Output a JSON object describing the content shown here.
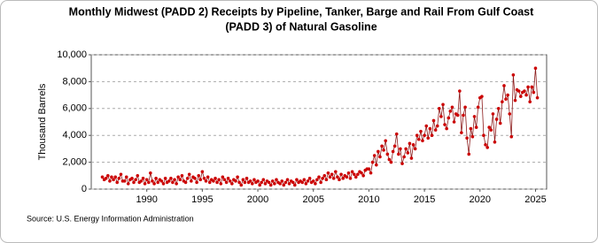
{
  "chart_data": {
    "type": "line",
    "title": [
      "Monthly Midwest (PADD 2)  Receipts by Pipeline, Tanker, Barge and Rail From Gulf Coast",
      "(PADD 3) of Natural Gasoline"
    ],
    "y_label": "Thousand Barrels",
    "source": "Source: U.S. Energy Information Administration",
    "color": "#8b1a1a",
    "marker_color": "#cc0000",
    "xlim": [
      1985,
      2026
    ],
    "xticks": [
      1990,
      1995,
      2000,
      2005,
      2010,
      2015,
      2020,
      2025
    ],
    "ylim": [
      0,
      10000
    ],
    "yticks": [
      0,
      {
        "value": 2000,
        "label": "2,000"
      },
      {
        "value": 4000,
        "label": "4,000"
      },
      {
        "value": 6000,
        "label": "6,000"
      },
      {
        "value": 8000,
        "label": "8,000"
      },
      {
        "value": 10000,
        "label": "10,000"
      }
    ],
    "grid": true,
    "x": [
      1986.0,
      1986.17,
      1986.33,
      1986.5,
      1986.67,
      1986.83,
      1987.0,
      1987.17,
      1987.33,
      1987.5,
      1987.67,
      1987.83,
      1988.0,
      1988.17,
      1988.33,
      1988.5,
      1988.67,
      1988.83,
      1989.0,
      1989.17,
      1989.33,
      1989.5,
      1989.67,
      1989.83,
      1990.0,
      1990.17,
      1990.33,
      1990.5,
      1990.67,
      1990.83,
      1991.0,
      1991.17,
      1991.33,
      1991.5,
      1991.67,
      1991.83,
      1992.0,
      1992.17,
      1992.33,
      1992.5,
      1992.67,
      1992.83,
      1993.0,
      1993.17,
      1993.33,
      1993.5,
      1993.67,
      1993.83,
      1994.0,
      1994.17,
      1994.33,
      1994.5,
      1994.67,
      1994.83,
      1995.0,
      1995.17,
      1995.33,
      1995.5,
      1995.67,
      1995.83,
      1996.0,
      1996.17,
      1996.33,
      1996.5,
      1996.67,
      1996.83,
      1997.0,
      1997.17,
      1997.33,
      1997.5,
      1997.67,
      1997.83,
      1998.0,
      1998.17,
      1998.33,
      1998.5,
      1998.67,
      1998.83,
      1999.0,
      1999.17,
      1999.33,
      1999.5,
      1999.67,
      1999.83,
      2000.0,
      2000.17,
      2000.33,
      2000.5,
      2000.67,
      2000.83,
      2001.0,
      2001.17,
      2001.33,
      2001.5,
      2001.67,
      2001.83,
      2002.0,
      2002.17,
      2002.33,
      2002.5,
      2002.67,
      2002.83,
      2003.0,
      2003.17,
      2003.33,
      2003.5,
      2003.67,
      2003.83,
      2004.0,
      2004.17,
      2004.33,
      2004.5,
      2004.67,
      2004.83,
      2005.0,
      2005.17,
      2005.33,
      2005.5,
      2005.67,
      2005.83,
      2006.0,
      2006.17,
      2006.33,
      2006.5,
      2006.67,
      2006.83,
      2007.0,
      2007.17,
      2007.33,
      2007.5,
      2007.67,
      2007.83,
      2008.0,
      2008.17,
      2008.33,
      2008.5,
      2008.67,
      2008.83,
      2009.0,
      2009.17,
      2009.33,
      2009.5,
      2009.67,
      2009.83,
      2010.0,
      2010.17,
      2010.33,
      2010.5,
      2010.67,
      2010.83,
      2011.0,
      2011.17,
      2011.33,
      2011.5,
      2011.67,
      2011.83,
      2012.0,
      2012.17,
      2012.33,
      2012.5,
      2012.67,
      2012.83,
      2013.0,
      2013.17,
      2013.33,
      2013.5,
      2013.67,
      2013.83,
      2014.0,
      2014.17,
      2014.33,
      2014.5,
      2014.67,
      2014.83,
      2015.0,
      2015.17,
      2015.33,
      2015.5,
      2015.67,
      2015.83,
      2016.0,
      2016.17,
      2016.33,
      2016.5,
      2016.67,
      2016.83,
      2017.0,
      2017.17,
      2017.33,
      2017.5,
      2017.67,
      2017.83,
      2018.0,
      2018.17,
      2018.33,
      2018.5,
      2018.67,
      2018.83,
      2019.0,
      2019.17,
      2019.33,
      2019.5,
      2019.67,
      2019.83,
      2020.0,
      2020.17,
      2020.33,
      2020.5,
      2020.67,
      2020.83,
      2021.0,
      2021.17,
      2021.33,
      2021.5,
      2021.67,
      2021.83,
      2022.0,
      2022.17,
      2022.33,
      2022.5,
      2022.67,
      2022.83,
      2023.0,
      2023.17,
      2023.33,
      2023.5,
      2023.67,
      2023.83,
      2024.0,
      2024.17,
      2024.33,
      2024.5,
      2024.67,
      2024.83,
      2025.0,
      2025.17
    ],
    "values": [
      900,
      700,
      800,
      1000,
      600,
      900,
      700,
      900,
      500,
      800,
      1100,
      600,
      600,
      900,
      400,
      700,
      800,
      500,
      700,
      1000,
      500,
      600,
      800,
      400,
      700,
      500,
      1200,
      600,
      400,
      800,
      500,
      700,
      600,
      400,
      800,
      500,
      600,
      800,
      500,
      700,
      400,
      900,
      700,
      1000,
      600,
      500,
      800,
      1100,
      600,
      900,
      800,
      500,
      1000,
      700,
      1300,
      800,
      600,
      900,
      500,
      700,
      600,
      800,
      500,
      700,
      400,
      900,
      700,
      500,
      800,
      600,
      400,
      700,
      600,
      900,
      500,
      300,
      700,
      500,
      800,
      500,
      600,
      400,
      700,
      500,
      600,
      300,
      500,
      700,
      400,
      600,
      500,
      300,
      600,
      400,
      700,
      500,
      400,
      600,
      300,
      500,
      700,
      400,
      600,
      500,
      300,
      700,
      500,
      600,
      500,
      700,
      400,
      600,
      800,
      500,
      600,
      400,
      700,
      900,
      500,
      800,
      1000,
      700,
      1200,
      900,
      1100,
      800,
      1300,
      900,
      700,
      1100,
      800,
      1000,
      900,
      1200,
      800,
      1300,
      1100,
      900,
      1100,
      1300,
      1200,
      1000,
      1400,
      1500,
      1500,
      1200,
      2000,
      2500,
      1800,
      2800,
      2400,
      3200,
      2900,
      3600,
      2600,
      2200,
      2000,
      2800,
      3200,
      4100,
      2600,
      3000,
      1900,
      2400,
      3000,
      2700,
      3400,
      2300,
      3300,
      3000,
      4000,
      3700,
      4300,
      3600,
      4000,
      4700,
      3800,
      4500,
      4000,
      5100,
      4400,
      4700,
      6000,
      5400,
      6300,
      4800,
      4500,
      5300,
      5800,
      6100,
      5000,
      5600,
      5500,
      7300,
      4200,
      5500,
      6100,
      3800,
      2600,
      4500,
      3900,
      5400,
      4600,
      6100,
      6800,
      6900,
      4000,
      3300,
      3100,
      4600,
      4400,
      5600,
      3500,
      5200,
      6000,
      4900,
      6500,
      7700,
      6700,
      7000,
      5600,
      3900,
      8500,
      6600,
      7400,
      7300,
      6900,
      7200,
      7300,
      7000,
      7600,
      6500,
      7600,
      7200,
      9000,
      6800
    ]
  }
}
